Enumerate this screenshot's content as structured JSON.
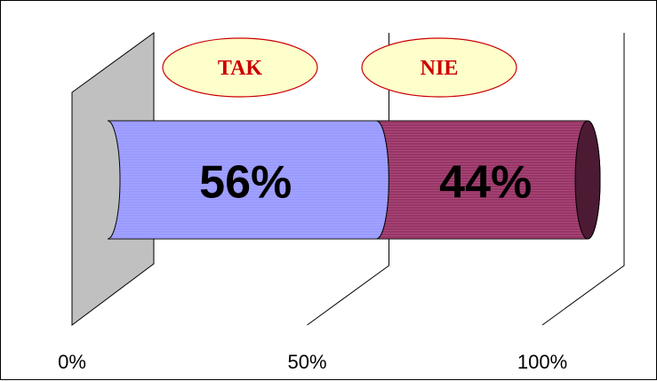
{
  "chart_data": {
    "type": "bar",
    "orientation": "horizontal",
    "stacked": "100%",
    "style": "3d-cylinder",
    "series": [
      {
        "name": "TAK",
        "value": 56,
        "label": "56%",
        "color": "#9999ff"
      },
      {
        "name": "NIE",
        "value": 44,
        "label": "44%",
        "color": "#993366"
      }
    ],
    "x_ticks": [
      "0%",
      "50%",
      "100%"
    ],
    "xlim": [
      0,
      100
    ],
    "grid": true,
    "legend": {
      "placement": "top",
      "items": [
        "TAK",
        "NIE"
      ],
      "text_color": "#cc0000",
      "fill_color": "#ffffcc",
      "border_color": "#cc0000"
    },
    "wall_color": "#c0c0c0"
  }
}
